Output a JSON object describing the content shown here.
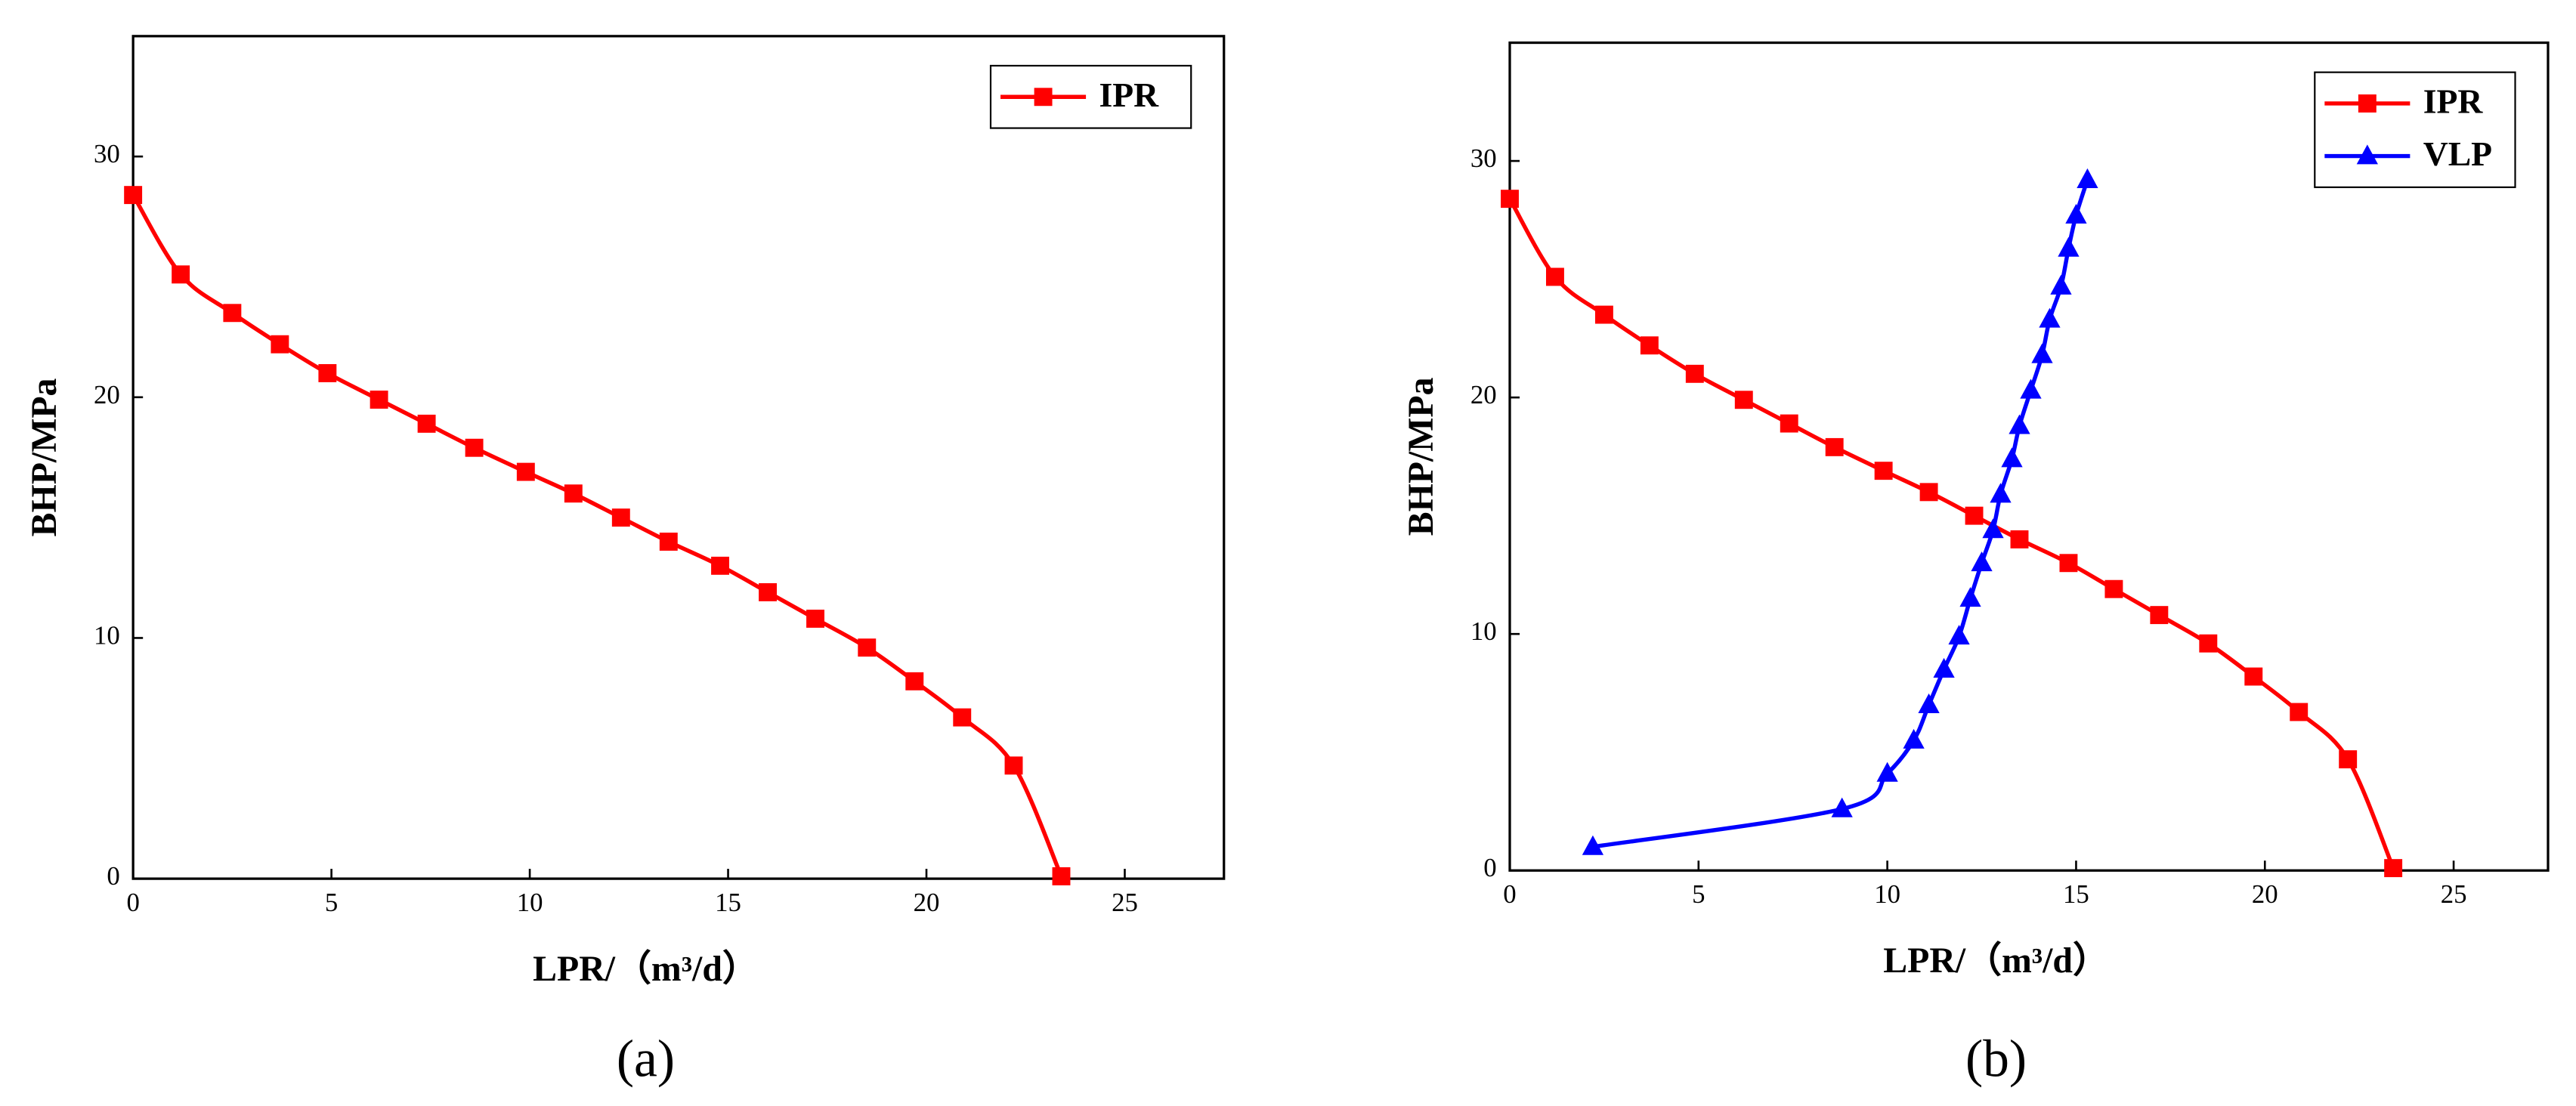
{
  "chart_data": [
    {
      "type": "line",
      "subtitle": "(a)",
      "xlabel": "LPR/（m³/d）",
      "ylabel": "BHP/MPa",
      "xlim": [
        0,
        27.5
      ],
      "ylim": [
        0,
        35
      ],
      "xticks": [
        0,
        5,
        10,
        15,
        20,
        25
      ],
      "yticks": [
        0,
        10,
        20,
        30
      ],
      "legend": "upper right",
      "series": [
        {
          "name": "IPR",
          "color": "#ff0000",
          "marker": "square",
          "x": [
            0,
            1.2,
            2.5,
            3.7,
            4.9,
            6.2,
            7.4,
            8.6,
            9.9,
            11.1,
            12.3,
            13.5,
            14.8,
            16.0,
            17.2,
            18.5,
            19.7,
            20.9,
            22.2,
            23.4
          ],
          "values": [
            28.4,
            25.1,
            23.5,
            22.2,
            21.0,
            19.9,
            18.9,
            17.9,
            16.9,
            16.0,
            15.0,
            14.0,
            13.0,
            11.9,
            10.8,
            9.6,
            8.2,
            6.7,
            4.7,
            0.1
          ]
        }
      ]
    },
    {
      "type": "line",
      "subtitle": "(b)",
      "xlabel": "LPR/（m³/d）",
      "ylabel": "BHP/MPa",
      "xlim": [
        0,
        27.5
      ],
      "ylim": [
        0,
        35
      ],
      "xticks": [
        0,
        5,
        10,
        15,
        20,
        25
      ],
      "yticks": [
        0,
        10,
        20,
        30
      ],
      "legend": "upper right",
      "series": [
        {
          "name": "IPR",
          "color": "#ff0000",
          "marker": "square",
          "x": [
            0,
            1.2,
            2.5,
            3.7,
            4.9,
            6.2,
            7.4,
            8.6,
            9.9,
            11.1,
            12.3,
            13.5,
            14.8,
            16.0,
            17.2,
            18.5,
            19.7,
            20.9,
            22.2,
            23.4
          ],
          "values": [
            28.4,
            25.1,
            23.5,
            22.2,
            21.0,
            19.9,
            18.9,
            17.9,
            16.9,
            16.0,
            15.0,
            14.0,
            13.0,
            11.9,
            10.8,
            9.6,
            8.2,
            6.7,
            4.7,
            0.1
          ]
        },
        {
          "name": "VLP",
          "color": "#0000ff",
          "marker": "triangle",
          "x": [
            2.2,
            8.8,
            10.0,
            10.7,
            11.1,
            11.5,
            11.9,
            12.2,
            12.5,
            12.8,
            13.0,
            13.3,
            13.5,
            13.8,
            14.1,
            14.3,
            14.6,
            14.8,
            15.0,
            15.3
          ],
          "values": [
            1.0,
            2.6,
            4.1,
            5.5,
            7.0,
            8.5,
            9.9,
            11.5,
            13.0,
            14.4,
            15.9,
            17.4,
            18.8,
            20.3,
            21.8,
            23.3,
            24.7,
            26.3,
            27.7,
            29.2
          ]
        }
      ]
    }
  ]
}
